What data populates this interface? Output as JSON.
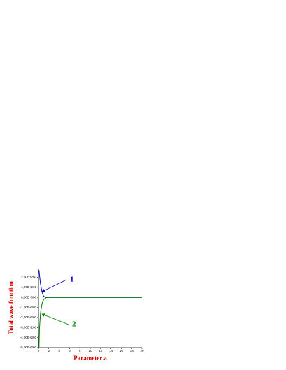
{
  "chart_data": {
    "type": "line",
    "x_label": "Parameter a",
    "y_label": "Total wave function",
    "x": [
      0.1,
      0.2,
      0.4,
      0.7,
      1,
      1.5,
      2,
      20
    ],
    "series": [
      {
        "name": "1",
        "color": "#0000cc",
        "values": [
          2.7e+260,
          2.2e+260,
          1.3e+260,
          5e+259,
          1e+259,
          0,
          0,
          0
        ]
      },
      {
        "name": "2",
        "color": "#008000",
        "values": [
          -5e+260,
          -3e+260,
          -1.5e+260,
          -6e+259,
          -2e+259,
          -3e+258,
          0,
          0
        ]
      }
    ],
    "xlim": [
      0,
      20
    ],
    "xticks": [
      0,
      2,
      4,
      6,
      8,
      10,
      12,
      14,
      16,
      18,
      20
    ],
    "ylim": [
      -5e+260,
      2.8e+260
    ],
    "yticks": [
      {
        "value": 2e+260,
        "label": "2,00E+260"
      },
      {
        "value": 1e+260,
        "label": "1,00E+260"
      },
      {
        "value": 0,
        "label": "0,00E+000"
      },
      {
        "value": -1e+260,
        "label": "-1,00E+260"
      },
      {
        "value": -2e+260,
        "label": "-2,00E+260"
      },
      {
        "value": -3e+260,
        "label": "-3,00E+260"
      },
      {
        "value": -4e+260,
        "label": "-4,00E+260"
      },
      {
        "value": -5e+260,
        "label": "-5,00E+260"
      }
    ]
  }
}
